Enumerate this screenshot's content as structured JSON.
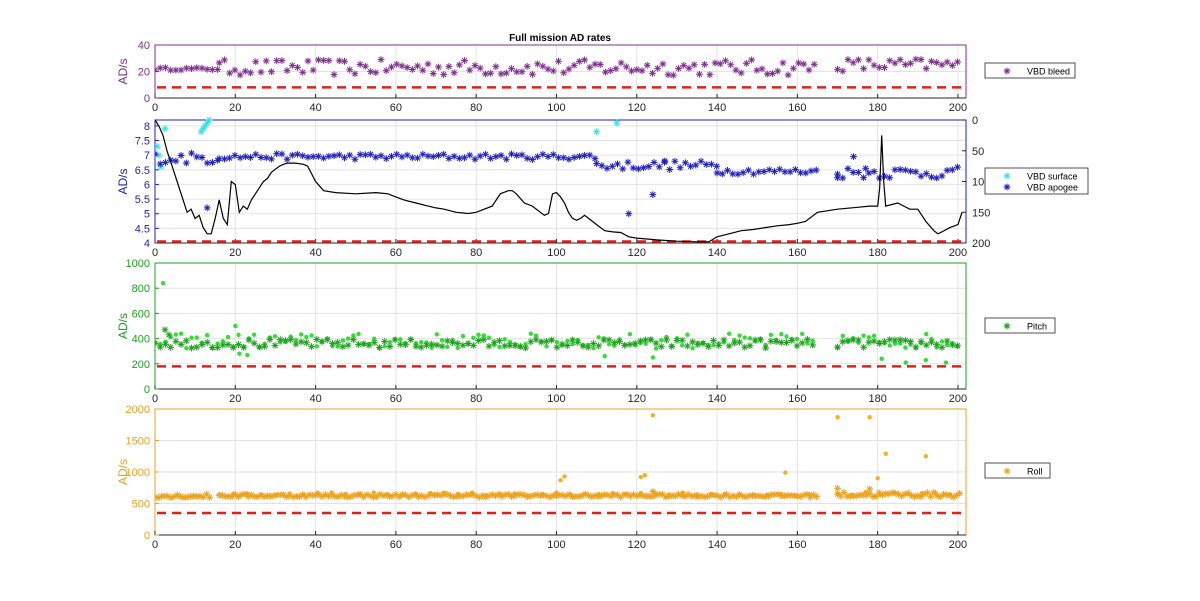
{
  "figure": {
    "title": "Full mission AD rates"
  },
  "chart_data": [
    {
      "type": "scatter",
      "id": "bleed",
      "color": "#7E2F8E",
      "ylabel": "AD/s",
      "xlim": [
        0,
        202
      ],
      "ylim": [
        0,
        40
      ],
      "xticks": [
        0,
        20,
        40,
        60,
        80,
        100,
        120,
        140,
        160,
        180,
        200
      ],
      "yticks": [
        0,
        20,
        40
      ],
      "threshold": 8,
      "series": [
        {
          "name": "VBD bleed",
          "marker": "asterisk",
          "segments": [
            {
              "from": 0,
              "to": 16,
              "step": 1.3,
              "base": 22,
              "noise": 1
            },
            {
              "from": 16,
              "to": 165,
              "step": 1.3,
              "base": 23,
              "noise": 6
            },
            {
              "from": 170,
              "to": 201,
              "step": 1.3,
              "base": 25,
              "noise": 5
            }
          ]
        }
      ]
    },
    {
      "type": "scatter",
      "id": "vbd",
      "color": "#1F1FBF",
      "ylabel": "AD/s",
      "xlim": [
        0,
        202
      ],
      "ylim": [
        4,
        8.2
      ],
      "xticks": [
        0,
        20,
        40,
        60,
        80,
        100,
        120,
        140,
        160,
        180,
        200
      ],
      "yticks": [
        4,
        4.5,
        5,
        5.5,
        6,
        6.5,
        7,
        7.5,
        8
      ],
      "threshold": 4.05,
      "y2": {
        "ticks": [
          0,
          50,
          100,
          150,
          200
        ],
        "range": [
          0,
          200
        ],
        "reversed": true
      },
      "series": [
        {
          "name": "VBD surface",
          "marker": "asterisk",
          "color": "#33E0E6",
          "points": [
            [
              0.5,
              7.3
            ],
            [
              1,
              7.0
            ],
            [
              1.5,
              6.6
            ],
            [
              2.5,
              7.9
            ],
            [
              11.5,
              7.8
            ],
            [
              12,
              7.9
            ],
            [
              12.5,
              8.0
            ],
            [
              13,
              8.1
            ],
            [
              13.5,
              8.2
            ],
            [
              110,
              7.8
            ],
            [
              115,
              8.1
            ]
          ]
        },
        {
          "name": "VBD apogee",
          "marker": "asterisk",
          "color": "#1F1FBF",
          "segments": [
            {
              "from": 0,
              "to": 16,
              "step": 1.3,
              "base": 6.9,
              "noise": 0.2
            },
            {
              "from": 16,
              "to": 110,
              "step": 1.3,
              "base": 6.95,
              "noise": 0.1
            },
            {
              "from": 110,
              "to": 140,
              "step": 1.3,
              "base": 6.65,
              "noise": 0.15
            },
            {
              "from": 140,
              "to": 165,
              "step": 1.3,
              "base": 6.45,
              "noise": 0.1
            },
            {
              "from": 170,
              "to": 201,
              "step": 1.3,
              "base": 6.4,
              "noise": 0.2
            }
          ],
          "points": [
            [
              13,
              5.2
            ],
            [
              118,
              5.0
            ],
            [
              124,
              5.65
            ],
            [
              127,
              6.8
            ],
            [
              170,
              6.35
            ],
            [
              174,
              6.95
            ],
            [
              177,
              6.55
            ]
          ]
        },
        {
          "name": "",
          "type": "line",
          "axis": "y2",
          "color": "#000000",
          "points": [
            [
              0,
              0
            ],
            [
              1,
              10
            ],
            [
              2,
              25
            ],
            [
              3,
              50
            ],
            [
              4,
              70
            ],
            [
              5,
              90
            ],
            [
              6,
              110
            ],
            [
              7,
              130
            ],
            [
              8,
              150
            ],
            [
              9,
              145
            ],
            [
              10,
              160
            ],
            [
              11,
              155
            ],
            [
              12,
              175
            ],
            [
              13,
              185
            ],
            [
              14,
              185
            ],
            [
              15,
              160
            ],
            [
              16,
              130
            ],
            [
              17,
              160
            ],
            [
              18,
              170
            ],
            [
              19,
              100
            ],
            [
              20,
              105
            ],
            [
              21,
              150
            ],
            [
              22,
              140
            ],
            [
              23,
              145
            ],
            [
              24,
              130
            ],
            [
              25,
              120
            ],
            [
              26,
              110
            ],
            [
              27,
              100
            ],
            [
              28,
              95
            ],
            [
              29,
              85
            ],
            [
              30,
              80
            ],
            [
              31,
              75
            ],
            [
              32,
              72
            ],
            [
              33,
              70
            ],
            [
              35,
              70
            ],
            [
              37,
              72
            ],
            [
              38,
              75
            ],
            [
              40,
              100
            ],
            [
              42,
              115
            ],
            [
              45,
              118
            ],
            [
              50,
              120
            ],
            [
              55,
              118
            ],
            [
              58,
              120
            ],
            [
              60,
              125
            ],
            [
              62,
              130
            ],
            [
              65,
              135
            ],
            [
              68,
              140
            ],
            [
              70,
              143
            ],
            [
              72,
              145
            ],
            [
              75,
              150
            ],
            [
              78,
              152
            ],
            [
              80,
              150
            ],
            [
              82,
              145
            ],
            [
              84,
              140
            ],
            [
              86,
              120
            ],
            [
              88,
              115
            ],
            [
              89,
              115
            ],
            [
              90,
              120
            ],
            [
              92,
              135
            ],
            [
              94,
              140
            ],
            [
              96,
              150
            ],
            [
              97,
              155
            ],
            [
              98,
              152
            ],
            [
              99,
              120
            ],
            [
              100,
              118
            ],
            [
              101,
              125
            ],
            [
              102,
              135
            ],
            [
              103,
              150
            ],
            [
              104,
              160
            ],
            [
              105,
              163
            ],
            [
              106,
              160
            ],
            [
              107,
              155
            ],
            [
              108,
              160
            ],
            [
              110,
              170
            ],
            [
              112,
              180
            ],
            [
              114,
              182
            ],
            [
              116,
              183
            ],
            [
              118,
              190
            ],
            [
              120,
              192
            ],
            [
              125,
              195
            ],
            [
              130,
              197
            ],
            [
              135,
              198
            ],
            [
              138,
              198
            ],
            [
              140,
              190
            ],
            [
              143,
              185
            ],
            [
              146,
              180
            ],
            [
              149,
              178
            ],
            [
              152,
              175
            ],
            [
              155,
              172
            ],
            [
              158,
              170
            ],
            [
              160,
              168
            ],
            [
              162,
              165
            ],
            [
              165,
              150
            ],
            [
              170,
              145
            ],
            [
              175,
              142
            ],
            [
              178,
              140
            ],
            [
              180,
              140
            ],
            [
              180.5,
              110
            ],
            [
              181,
              25
            ],
            [
              181.5,
              100
            ],
            [
              182,
              140
            ],
            [
              185,
              135
            ],
            [
              188,
              145
            ],
            [
              190,
              145
            ],
            [
              192,
              165
            ],
            [
              194,
              180
            ],
            [
              195,
              185
            ],
            [
              196,
              182
            ],
            [
              198,
              175
            ],
            [
              200,
              170
            ],
            [
              201,
              150
            ]
          ]
        }
      ]
    },
    {
      "type": "scatter",
      "id": "pitch",
      "color": "#1F9F1F",
      "ylabel": "AD/s",
      "xlim": [
        0,
        202
      ],
      "ylim": [
        0,
        1000
      ],
      "xticks": [
        0,
        20,
        40,
        60,
        80,
        100,
        120,
        140,
        160,
        180,
        200
      ],
      "yticks": [
        0,
        200,
        400,
        600,
        800,
        1000
      ],
      "threshold": 180,
      "series": [
        {
          "name": "Pitch",
          "marker": "asterisk",
          "color": "#1F9F1F",
          "segments": [
            {
              "from": 0,
              "to": 165,
              "step": 1.3,
              "base": 360,
              "noise": 35
            },
            {
              "from": 170,
              "to": 201,
              "step": 1.3,
              "base": 360,
              "noise": 35
            }
          ],
          "points": [
            [
              2.5,
              470
            ],
            [
              3.5,
              430
            ]
          ]
        },
        {
          "name": "",
          "marker": "dot",
          "color": "#33DD33",
          "segments": [
            {
              "from": 0,
              "to": 165,
              "step": 1.3,
              "base": 380,
              "noise": 60
            },
            {
              "from": 170,
              "to": 201,
              "step": 1.3,
              "base": 380,
              "noise": 60
            }
          ],
          "points": [
            [
              2,
              840
            ],
            [
              20,
              500
            ],
            [
              21,
              280
            ],
            [
              23,
              270
            ],
            [
              112,
              260
            ],
            [
              124,
              250
            ],
            [
              181,
              240
            ],
            [
              187,
              210
            ],
            [
              192,
              230
            ],
            [
              197,
              210
            ]
          ]
        }
      ]
    },
    {
      "type": "scatter",
      "id": "roll",
      "color": "#EDA11D",
      "ylabel": "AD/s",
      "xlim": [
        0,
        202
      ],
      "ylim": [
        0,
        2000
      ],
      "xticks": [
        0,
        20,
        40,
        60,
        80,
        100,
        120,
        140,
        160,
        180,
        200
      ],
      "yticks": [
        0,
        500,
        1000,
        1500,
        2000
      ],
      "threshold": 350,
      "series": [
        {
          "name": "Roll",
          "marker": "asterisk",
          "color": "#EDA11D",
          "segments": [
            {
              "from": 0,
              "to": 14,
              "step": 0.8,
              "base": 620,
              "noise": 30
            },
            {
              "from": 16,
              "to": 165,
              "step": 0.8,
              "base": 625,
              "noise": 25
            },
            {
              "from": 170,
              "to": 201,
              "step": 0.8,
              "base": 640,
              "noise": 40
            }
          ],
          "points": [
            [
              124,
              690
            ],
            [
              170,
              740
            ],
            [
              178,
              730
            ]
          ]
        },
        {
          "name": "",
          "marker": "dot",
          "color": "#F5B020",
          "segments": [
            {
              "from": 16,
              "to": 165,
              "step": 3.5,
              "base": 650,
              "noise": 25
            },
            {
              "from": 170,
              "to": 201,
              "step": 3.5,
              "base": 660,
              "noise": 25
            }
          ],
          "points": [
            [
              101,
              870
            ],
            [
              102,
              930
            ],
            [
              121,
              920
            ],
            [
              122,
              950
            ],
            [
              124,
              1900
            ],
            [
              157,
              990
            ],
            [
              170,
              1870
            ],
            [
              178,
              1870
            ],
            [
              180,
              900
            ],
            [
              182,
              1290
            ],
            [
              192,
              1250
            ]
          ]
        }
      ]
    }
  ]
}
